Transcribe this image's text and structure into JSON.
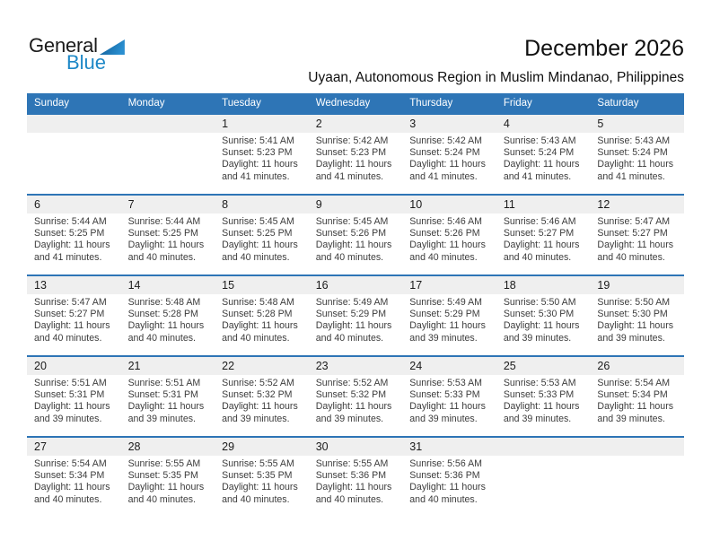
{
  "logo": {
    "part1": "General",
    "part2": "Blue"
  },
  "header": {
    "title": "December 2026",
    "subtitle": "Uyaan, Autonomous Region in Muslim Mindanao, Philippines"
  },
  "colors": {
    "accent": "#2E75B6",
    "day_band_bg": "#EFEFEF",
    "logo_blue": "#1E88C7",
    "header_text": "#FFFFFF",
    "body_text": "#3C3C3C"
  },
  "calendar": {
    "weekdays": [
      "Sunday",
      "Monday",
      "Tuesday",
      "Wednesday",
      "Thursday",
      "Friday",
      "Saturday"
    ],
    "weeks": [
      [
        null,
        null,
        {
          "day": "1",
          "sunrise": "Sunrise: 5:41 AM",
          "sunset": "Sunset: 5:23 PM",
          "daylight": [
            "Daylight: 11 hours",
            "and 41 minutes."
          ]
        },
        {
          "day": "2",
          "sunrise": "Sunrise: 5:42 AM",
          "sunset": "Sunset: 5:23 PM",
          "daylight": [
            "Daylight: 11 hours",
            "and 41 minutes."
          ]
        },
        {
          "day": "3",
          "sunrise": "Sunrise: 5:42 AM",
          "sunset": "Sunset: 5:24 PM",
          "daylight": [
            "Daylight: 11 hours",
            "and 41 minutes."
          ]
        },
        {
          "day": "4",
          "sunrise": "Sunrise: 5:43 AM",
          "sunset": "Sunset: 5:24 PM",
          "daylight": [
            "Daylight: 11 hours",
            "and 41 minutes."
          ]
        },
        {
          "day": "5",
          "sunrise": "Sunrise: 5:43 AM",
          "sunset": "Sunset: 5:24 PM",
          "daylight": [
            "Daylight: 11 hours",
            "and 41 minutes."
          ]
        }
      ],
      [
        {
          "day": "6",
          "sunrise": "Sunrise: 5:44 AM",
          "sunset": "Sunset: 5:25 PM",
          "daylight": [
            "Daylight: 11 hours",
            "and 41 minutes."
          ]
        },
        {
          "day": "7",
          "sunrise": "Sunrise: 5:44 AM",
          "sunset": "Sunset: 5:25 PM",
          "daylight": [
            "Daylight: 11 hours",
            "and 40 minutes."
          ]
        },
        {
          "day": "8",
          "sunrise": "Sunrise: 5:45 AM",
          "sunset": "Sunset: 5:25 PM",
          "daylight": [
            "Daylight: 11 hours",
            "and 40 minutes."
          ]
        },
        {
          "day": "9",
          "sunrise": "Sunrise: 5:45 AM",
          "sunset": "Sunset: 5:26 PM",
          "daylight": [
            "Daylight: 11 hours",
            "and 40 minutes."
          ]
        },
        {
          "day": "10",
          "sunrise": "Sunrise: 5:46 AM",
          "sunset": "Sunset: 5:26 PM",
          "daylight": [
            "Daylight: 11 hours",
            "and 40 minutes."
          ]
        },
        {
          "day": "11",
          "sunrise": "Sunrise: 5:46 AM",
          "sunset": "Sunset: 5:27 PM",
          "daylight": [
            "Daylight: 11 hours",
            "and 40 minutes."
          ]
        },
        {
          "day": "12",
          "sunrise": "Sunrise: 5:47 AM",
          "sunset": "Sunset: 5:27 PM",
          "daylight": [
            "Daylight: 11 hours",
            "and 40 minutes."
          ]
        }
      ],
      [
        {
          "day": "13",
          "sunrise": "Sunrise: 5:47 AM",
          "sunset": "Sunset: 5:27 PM",
          "daylight": [
            "Daylight: 11 hours",
            "and 40 minutes."
          ]
        },
        {
          "day": "14",
          "sunrise": "Sunrise: 5:48 AM",
          "sunset": "Sunset: 5:28 PM",
          "daylight": [
            "Daylight: 11 hours",
            "and 40 minutes."
          ]
        },
        {
          "day": "15",
          "sunrise": "Sunrise: 5:48 AM",
          "sunset": "Sunset: 5:28 PM",
          "daylight": [
            "Daylight: 11 hours",
            "and 40 minutes."
          ]
        },
        {
          "day": "16",
          "sunrise": "Sunrise: 5:49 AM",
          "sunset": "Sunset: 5:29 PM",
          "daylight": [
            "Daylight: 11 hours",
            "and 40 minutes."
          ]
        },
        {
          "day": "17",
          "sunrise": "Sunrise: 5:49 AM",
          "sunset": "Sunset: 5:29 PM",
          "daylight": [
            "Daylight: 11 hours",
            "and 39 minutes."
          ]
        },
        {
          "day": "18",
          "sunrise": "Sunrise: 5:50 AM",
          "sunset": "Sunset: 5:30 PM",
          "daylight": [
            "Daylight: 11 hours",
            "and 39 minutes."
          ]
        },
        {
          "day": "19",
          "sunrise": "Sunrise: 5:50 AM",
          "sunset": "Sunset: 5:30 PM",
          "daylight": [
            "Daylight: 11 hours",
            "and 39 minutes."
          ]
        }
      ],
      [
        {
          "day": "20",
          "sunrise": "Sunrise: 5:51 AM",
          "sunset": "Sunset: 5:31 PM",
          "daylight": [
            "Daylight: 11 hours",
            "and 39 minutes."
          ]
        },
        {
          "day": "21",
          "sunrise": "Sunrise: 5:51 AM",
          "sunset": "Sunset: 5:31 PM",
          "daylight": [
            "Daylight: 11 hours",
            "and 39 minutes."
          ]
        },
        {
          "day": "22",
          "sunrise": "Sunrise: 5:52 AM",
          "sunset": "Sunset: 5:32 PM",
          "daylight": [
            "Daylight: 11 hours",
            "and 39 minutes."
          ]
        },
        {
          "day": "23",
          "sunrise": "Sunrise: 5:52 AM",
          "sunset": "Sunset: 5:32 PM",
          "daylight": [
            "Daylight: 11 hours",
            "and 39 minutes."
          ]
        },
        {
          "day": "24",
          "sunrise": "Sunrise: 5:53 AM",
          "sunset": "Sunset: 5:33 PM",
          "daylight": [
            "Daylight: 11 hours",
            "and 39 minutes."
          ]
        },
        {
          "day": "25",
          "sunrise": "Sunrise: 5:53 AM",
          "sunset": "Sunset: 5:33 PM",
          "daylight": [
            "Daylight: 11 hours",
            "and 39 minutes."
          ]
        },
        {
          "day": "26",
          "sunrise": "Sunrise: 5:54 AM",
          "sunset": "Sunset: 5:34 PM",
          "daylight": [
            "Daylight: 11 hours",
            "and 39 minutes."
          ]
        }
      ],
      [
        {
          "day": "27",
          "sunrise": "Sunrise: 5:54 AM",
          "sunset": "Sunset: 5:34 PM",
          "daylight": [
            "Daylight: 11 hours",
            "and 40 minutes."
          ]
        },
        {
          "day": "28",
          "sunrise": "Sunrise: 5:55 AM",
          "sunset": "Sunset: 5:35 PM",
          "daylight": [
            "Daylight: 11 hours",
            "and 40 minutes."
          ]
        },
        {
          "day": "29",
          "sunrise": "Sunrise: 5:55 AM",
          "sunset": "Sunset: 5:35 PM",
          "daylight": [
            "Daylight: 11 hours",
            "and 40 minutes."
          ]
        },
        {
          "day": "30",
          "sunrise": "Sunrise: 5:55 AM",
          "sunset": "Sunset: 5:36 PM",
          "daylight": [
            "Daylight: 11 hours",
            "and 40 minutes."
          ]
        },
        {
          "day": "31",
          "sunrise": "Sunrise: 5:56 AM",
          "sunset": "Sunset: 5:36 PM",
          "daylight": [
            "Daylight: 11 hours",
            "and 40 minutes."
          ]
        },
        null,
        null
      ]
    ]
  }
}
